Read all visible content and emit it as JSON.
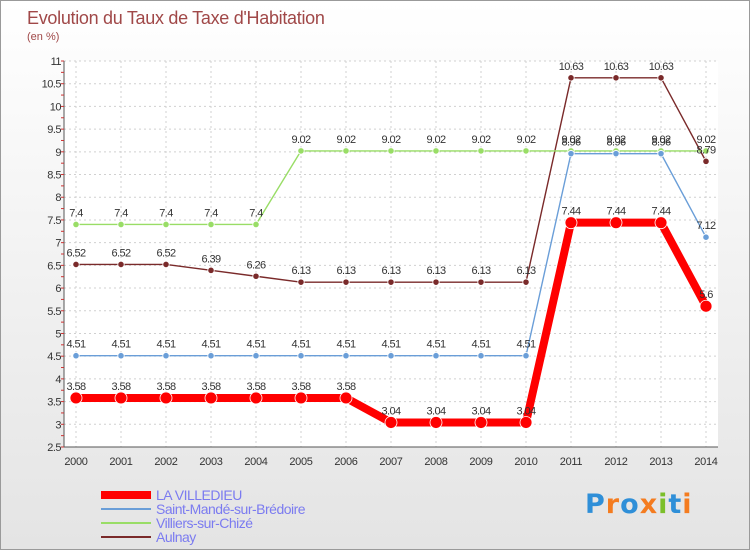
{
  "title": "Evolution du Taux de Taxe d'Habitation",
  "subtitle": "(en %)",
  "logo": {
    "text": "Proxiti",
    "colors": [
      "#2f8fd8",
      "#f47c20",
      "#2f8fd8",
      "#f47c20",
      "#7bbf2a",
      "#2f8fd8",
      "#f47c20"
    ]
  },
  "chart_data": {
    "type": "line",
    "x": [
      "2000",
      "2001",
      "2002",
      "2003",
      "2004",
      "2005",
      "2006",
      "2007",
      "2008",
      "2009",
      "2010",
      "2011",
      "2012",
      "2013",
      "2014"
    ],
    "ylim": [
      2.5,
      11
    ],
    "yticks": [
      "2.5",
      "3",
      "3.5",
      "4",
      "4.5",
      "5",
      "5.5",
      "6",
      "6.5",
      "7",
      "7.5",
      "8",
      "8.5",
      "9",
      "9.5",
      "10",
      "10.5",
      "11"
    ],
    "grid": true,
    "legend_position": "bottom-left",
    "series": [
      {
        "name": "LA VILLEDIEU",
        "color": "#ff0000",
        "values": [
          3.58,
          3.58,
          3.58,
          3.58,
          3.58,
          3.58,
          3.58,
          3.04,
          3.04,
          3.04,
          3.04,
          7.44,
          7.44,
          7.44,
          5.6
        ],
        "labels": [
          "3.58",
          "3.58",
          "3.58",
          "3.58",
          "3.58",
          "3.58",
          "3.58",
          "3.04",
          "3.04",
          "3.04",
          "3.04",
          "7.44",
          "7.44",
          "7.44",
          "5.6"
        ]
      },
      {
        "name": "Saint-Mandé-sur-Brédoire",
        "color": "#6a9ed8",
        "values": [
          4.51,
          4.51,
          4.51,
          4.51,
          4.51,
          4.51,
          4.51,
          4.51,
          4.51,
          4.51,
          4.51,
          8.96,
          8.96,
          8.96,
          7.12
        ],
        "labels": [
          "4.51",
          "4.51",
          "4.51",
          "4.51",
          "4.51",
          "4.51",
          "4.51",
          "4.51",
          "4.51",
          "4.51",
          "4.51",
          "8.96",
          "8.96",
          "8.96",
          "7.12"
        ]
      },
      {
        "name": "Villiers-sur-Chizé",
        "color": "#99dd66",
        "values": [
          7.4,
          7.4,
          7.4,
          7.4,
          7.4,
          9.02,
          9.02,
          9.02,
          9.02,
          9.02,
          9.02,
          9.02,
          9.02,
          9.02,
          9.02
        ],
        "labels": [
          "7.4",
          "7.4",
          "7.4",
          "7.4",
          "7.4",
          "9.02",
          "9.02",
          "9.02",
          "9.02",
          "9.02",
          "9.02",
          "9.02",
          "9.02",
          "9.02",
          "9.02"
        ]
      },
      {
        "name": "Aulnay",
        "color": "#7a2a2a",
        "values": [
          6.52,
          6.52,
          6.52,
          6.39,
          6.26,
          6.13,
          6.13,
          6.13,
          6.13,
          6.13,
          6.13,
          10.63,
          10.63,
          10.63,
          8.79
        ],
        "labels": [
          "6.52",
          "6.52",
          "6.52",
          "6.39",
          "6.26",
          "6.13",
          "6.13",
          "6.13",
          "6.13",
          "6.13",
          "6.13",
          "10.63",
          "10.63",
          "10.63",
          "8.79"
        ]
      }
    ]
  }
}
